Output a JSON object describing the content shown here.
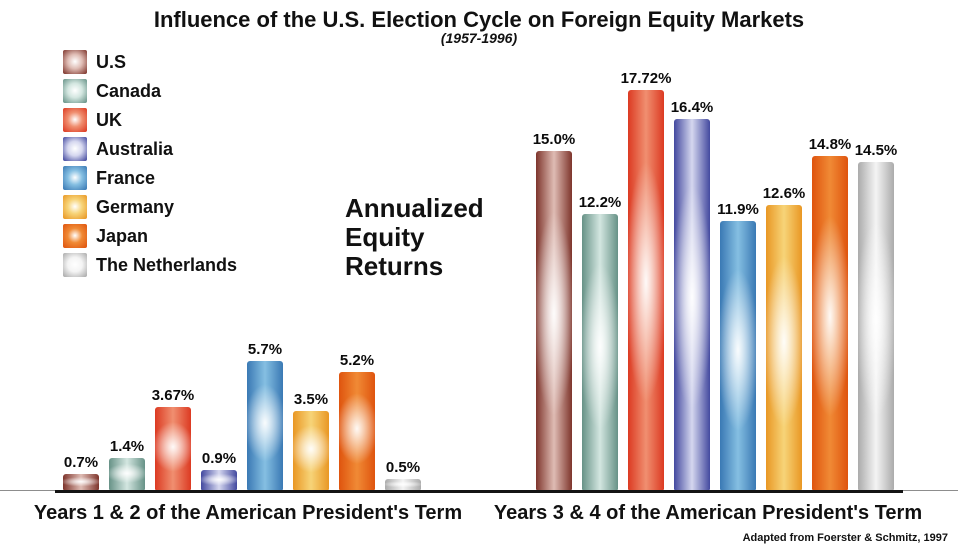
{
  "title": "Influence of the U.S. Election Cycle on Foreign Equity Markets",
  "subtitle": "(1957-1996)",
  "annotation_lines": [
    "Annualized",
    "Equity",
    "Returns"
  ],
  "attribution": "Adapted from Foerster & Schmitz, 1997",
  "legend": {
    "items": [
      {
        "label": "U.S",
        "edge": "#7e352c",
        "mid": "#dfbcb4"
      },
      {
        "label": "Canada",
        "edge": "#679287",
        "mid": "#d3e6e0"
      },
      {
        "label": "UK",
        "edge": "#dc3a22",
        "mid": "#f08f70"
      },
      {
        "label": "Australia",
        "edge": "#43499f",
        "mid": "#d5d7ef"
      },
      {
        "label": "France",
        "edge": "#3a79b4",
        "mid": "#85bfe2"
      },
      {
        "label": "Germany",
        "edge": "#e99724",
        "mid": "#f7d478"
      },
      {
        "label": "Japan",
        "edge": "#df540e",
        "mid": "#f08a35"
      },
      {
        "label": "The Netherlands",
        "edge": "#ababab",
        "mid": "#f4f4f4"
      }
    ]
  },
  "chart_data": {
    "type": "bar",
    "title": "Influence of the U.S. Election Cycle on Foreign Equity Markets",
    "subtitle": "(1957-1996)",
    "annotation": "Annualized Equity Returns",
    "categories": [
      "U.S",
      "Canada",
      "UK",
      "Australia",
      "France",
      "Germany",
      "Japan",
      "The Netherlands"
    ],
    "group_labels": [
      "Years 1 & 2 of the American President's Term",
      "Years 3 & 4 of the American President's Term"
    ],
    "series": [
      {
        "name": "Years 1 & 2 of the American President's Term",
        "values": [
          0.7,
          1.4,
          3.67,
          0.9,
          5.7,
          3.5,
          5.2,
          0.5
        ],
        "labels": [
          "0.7%",
          "1.4%",
          "3.67%",
          "0.9%",
          "5.7%",
          "3.5%",
          "5.2%",
          "0.5%"
        ]
      },
      {
        "name": "Years 3 & 4 of the American President's Term",
        "values": [
          15.0,
          12.2,
          17.72,
          16.4,
          11.9,
          12.6,
          14.8,
          14.5
        ],
        "labels": [
          "15.0%",
          "12.2%",
          "17.72%",
          "16.4%",
          "11.9%",
          "12.6%",
          "14.8%",
          "14.5%"
        ]
      }
    ],
    "colors": [
      "#7e352c",
      "#679287",
      "#dc3a22",
      "#43499f",
      "#3a79b4",
      "#e99724",
      "#df540e",
      "#ababab"
    ],
    "ylim": [
      0,
      18
    ],
    "grid": false,
    "legend_position": "top-left",
    "value_labels": "above-bars",
    "attribution": "Adapted from Foerster & Schmitz, 1997"
  }
}
